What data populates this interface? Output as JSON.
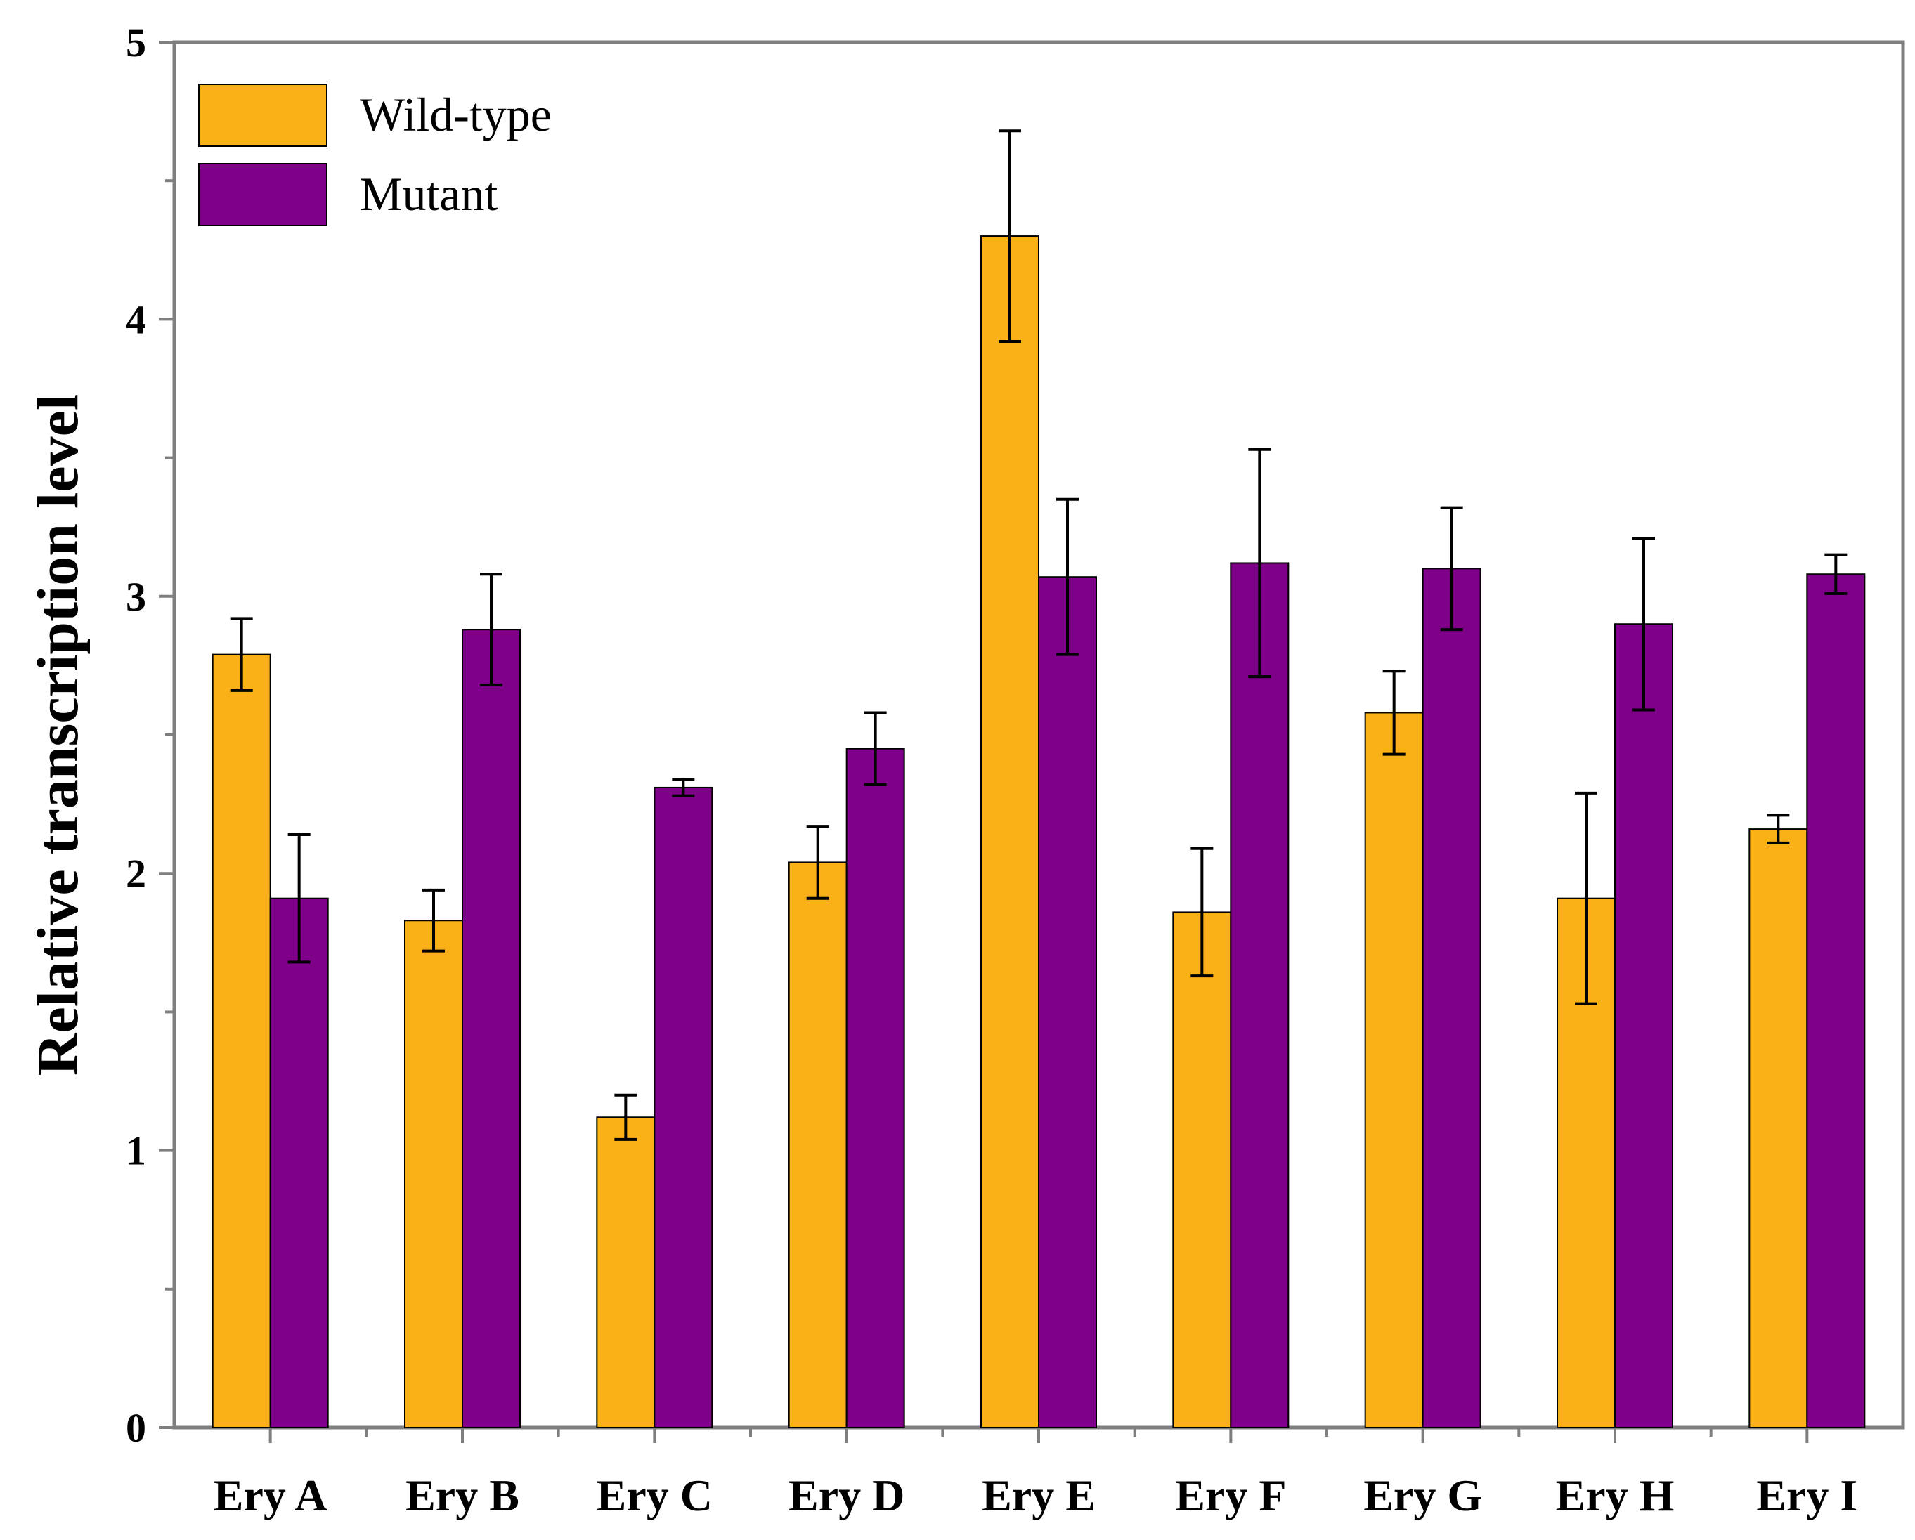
{
  "chart_data": {
    "type": "bar",
    "title": "",
    "xlabel": "",
    "ylabel": "Relative transcription level",
    "ylim": [
      0,
      5
    ],
    "yticks": [
      "0",
      "1",
      "2",
      "3",
      "4",
      "5"
    ],
    "categories": [
      "Ery A",
      "Ery B",
      "Ery C",
      "Ery D",
      "Ery E",
      "Ery F",
      "Ery G",
      "Ery H",
      "Ery I"
    ],
    "legend_position": "top-left",
    "series": [
      {
        "name": "Wild-type",
        "color": "#F9B117",
        "values": [
          2.79,
          1.83,
          1.12,
          2.04,
          4.3,
          1.86,
          2.58,
          1.91,
          2.16
        ],
        "errors": [
          0.13,
          0.11,
          0.08,
          0.13,
          0.38,
          0.23,
          0.15,
          0.38,
          0.05
        ]
      },
      {
        "name": "Mutant",
        "color": "#7E0088",
        "values": [
          1.91,
          2.88,
          2.31,
          2.45,
          3.07,
          3.12,
          3.1,
          2.9,
          3.08
        ],
        "errors": [
          0.23,
          0.2,
          0.03,
          0.13,
          0.28,
          0.41,
          0.22,
          0.31,
          0.07
        ]
      }
    ]
  }
}
